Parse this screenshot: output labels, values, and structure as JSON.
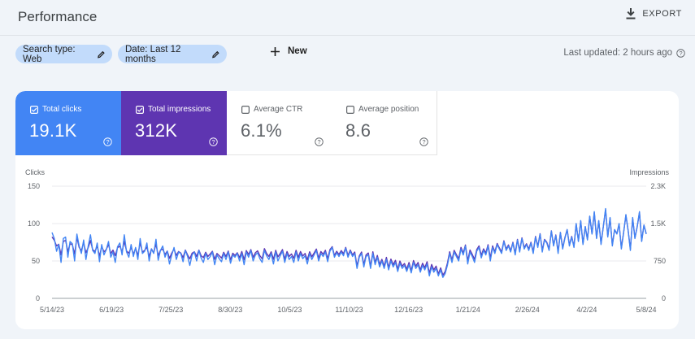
{
  "header": {
    "title": "Performance",
    "export_label": "EXPORT"
  },
  "filters": {
    "search_type": "Search type: Web",
    "date": "Date: Last 12 months",
    "new_label": "New",
    "last_updated": "Last updated: 2 hours ago"
  },
  "metrics": [
    {
      "label": "Total clicks",
      "value": "19.1K",
      "checked": true
    },
    {
      "label": "Total impressions",
      "value": "312K",
      "checked": true
    },
    {
      "label": "Average CTR",
      "value": "6.1%",
      "checked": false
    },
    {
      "label": "Average position",
      "value": "8.6",
      "checked": false
    }
  ],
  "colors": {
    "clicks": "#4285f4",
    "impressions": "#5e35b1",
    "chip_bg": "#c2dbfb"
  },
  "chart_data": {
    "type": "line",
    "left_axis": {
      "label": "Clicks",
      "ticks": [
        "0",
        "50",
        "100",
        "150"
      ],
      "range": [
        0,
        150
      ]
    },
    "right_axis": {
      "label": "Impressions",
      "ticks": [
        "0",
        "750",
        "1.5K",
        "2.3K"
      ],
      "range": [
        0,
        2300
      ]
    },
    "x_labels": [
      "5/14/23",
      "6/19/23",
      "7/25/23",
      "8/30/23",
      "10/5/23",
      "11/10/23",
      "12/16/23",
      "1/21/24",
      "2/26/24",
      "4/2/24",
      "5/8/24"
    ],
    "grid": true,
    "legend": "none",
    "series": [
      {
        "name": "Clicks",
        "axis": "left",
        "values": [
          88,
          80,
          63,
          72,
          48,
          80,
          82,
          55,
          76,
          73,
          50,
          86,
          70,
          60,
          78,
          52,
          70,
          85,
          64,
          60,
          74,
          49,
          72,
          58,
          65,
          76,
          55,
          62,
          48,
          69,
          74,
          58,
          85,
          62,
          55,
          72,
          56,
          68,
          52,
          80,
          60,
          63,
          74,
          50,
          66,
          60,
          79,
          51,
          64,
          70,
          55,
          63,
          46,
          58,
          68,
          52,
          62,
          60,
          49,
          64,
          56,
          44,
          58,
          62,
          50,
          64,
          54,
          48,
          60,
          52,
          56,
          62,
          45,
          58,
          53,
          49,
          60,
          52,
          62,
          47,
          58,
          55,
          60,
          50,
          60,
          45,
          62,
          55,
          64,
          50,
          58,
          61,
          53,
          48,
          64,
          57,
          52,
          60,
          46,
          62,
          50,
          57,
          63,
          48,
          60,
          52,
          56,
          48,
          62,
          50,
          60,
          53,
          57,
          46,
          60,
          52,
          58,
          64,
          50,
          60,
          56,
          62,
          49,
          63,
          68,
          55,
          61,
          56,
          62,
          57,
          67,
          55,
          63,
          56,
          60,
          40,
          55,
          60,
          42,
          56,
          58,
          40,
          60,
          45,
          55,
          42,
          50,
          40,
          52,
          38,
          50,
          42,
          48,
          36,
          47,
          40,
          44,
          36,
          45,
          34,
          48,
          40,
          45,
          35,
          44,
          38,
          46,
          30,
          42,
          35,
          40,
          30,
          38,
          28,
          33,
          44,
          60,
          48,
          62,
          56,
          50,
          66,
          58,
          70,
          46,
          62,
          56,
          48,
          63,
          68,
          54,
          64,
          58,
          70,
          50,
          68,
          60,
          72,
          66,
          60,
          76,
          64,
          70,
          62,
          74,
          58,
          78,
          62,
          80,
          66,
          72,
          64,
          74,
          60,
          82,
          68,
          86,
          62,
          78,
          74,
          64,
          90,
          70,
          84,
          60,
          88,
          66,
          80,
          92,
          70,
          82,
          68,
          100,
          76,
          104,
          72,
          96,
          78,
          110,
          86,
          116,
          80,
          104,
          72,
          96,
          120,
          82,
          108,
          70,
          92,
          86,
          100,
          66,
          88,
          112,
          90,
          64,
          108,
          80,
          96,
          116,
          76,
          98,
          86
        ]
      },
      {
        "name": "Impressions",
        "axis": "right",
        "values": [
          1260,
          1190,
          1075,
          1110,
          890,
          1165,
          1190,
          960,
          1120,
          1100,
          910,
          1250,
          1045,
          980,
          1140,
          935,
          1040,
          1185,
          1000,
          960,
          1075,
          865,
          1065,
          955,
          1000,
          1105,
          920,
          990,
          875,
          1040,
          1070,
          955,
          1170,
          970,
          925,
          1045,
          905,
          1025,
          880,
          1140,
          950,
          985,
          1050,
          860,
          1015,
          935,
          1115,
          875,
          985,
          1010,
          900,
          970,
          820,
          930,
          1010,
          880,
          960,
          930,
          835,
          990,
          890,
          810,
          925,
          955,
          860,
          990,
          875,
          835,
          945,
          860,
          910,
          965,
          800,
          920,
          875,
          825,
          945,
          860,
          970,
          790,
          925,
          880,
          935,
          835,
          960,
          790,
          980,
          900,
          1000,
          840,
          935,
          975,
          875,
          810,
          1020,
          920,
          860,
          955,
          800,
          985,
          850,
          920,
          1000,
          805,
          960,
          860,
          910,
          820,
          985,
          840,
          960,
          870,
          920,
          790,
          955,
          855,
          930,
          1010,
          825,
          960,
          905,
          985,
          810,
          1000,
          1060,
          880,
          965,
          900,
          980,
          915,
          1045,
          880,
          990,
          890,
          950,
          665,
          870,
          950,
          690,
          890,
          930,
          655,
          955,
          735,
          880,
          695,
          800,
          660,
          840,
          630,
          805,
          690,
          780,
          600,
          765,
          660,
          715,
          600,
          735,
          565,
          775,
          660,
          735,
          580,
          720,
          630,
          750,
          515,
          695,
          585,
          660,
          500,
          625,
          475,
          550,
          720,
          955,
          785,
          985,
          895,
          815,
          1045,
          930,
          1095,
          770,
          990,
          900,
          800,
          1000,
          1075,
          880,
          1015,
          930,
          1100,
          830,
          1075,
          955,
          1125,
          1035,
          955,
          1180,
          1010,
          1095,
          975,
          1150,
          925,
          1210,
          980,
          1240,
          1040,
          1120,
          1010,
          1150,
          955,
          1270,
          1065,
          1325,
          985,
          1210,
          1150,
          1010,
          1385,
          1095,
          1300,
          955,
          1350,
          1035,
          1240,
          1410,
          1095,
          1270,
          1065,
          1525,
          1180,
          1585,
          1125,
          1470,
          1210,
          1675,
          1325,
          1760,
          1240,
          1585,
          1125,
          1470,
          1815,
          1270,
          1640,
          1095,
          1410,
          1325,
          1525,
          1035,
          1355,
          1700,
          1385,
          1010,
          1640,
          1240,
          1470,
          1760,
          1180,
          1500,
          1325
        ]
      }
    ]
  }
}
